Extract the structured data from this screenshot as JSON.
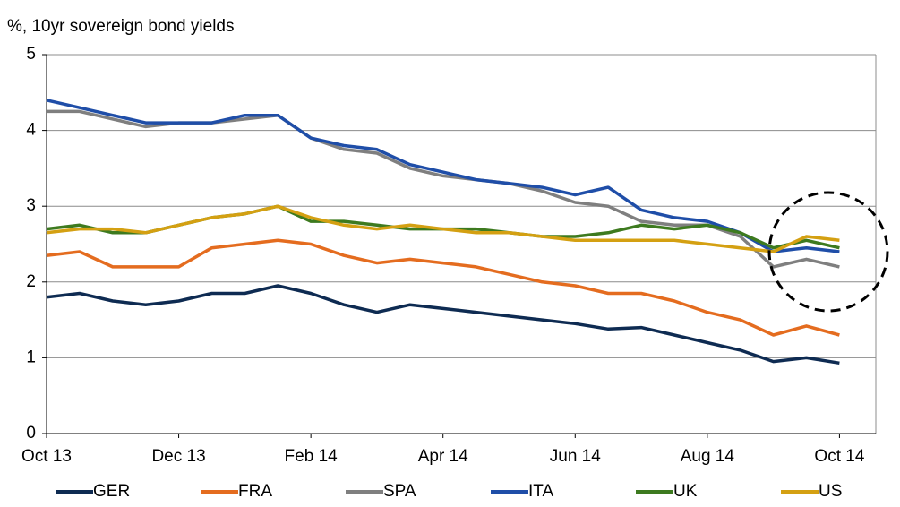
{
  "chart_data": {
    "type": "line",
    "subtitle": "%, 10yr sovereign bond yields",
    "x": [
      0,
      0.5,
      1,
      1.5,
      2,
      2.5,
      3,
      3.5,
      4,
      4.5,
      5,
      5.5,
      6,
      6.5,
      7,
      7.5,
      8,
      8.5,
      9,
      9.5,
      10,
      10.5,
      11,
      11.5,
      12
    ],
    "xlim": [
      0,
      12.55
    ],
    "xticks": [
      {
        "value": 0,
        "label": "Oct 13"
      },
      {
        "value": 2,
        "label": "Dec 13"
      },
      {
        "value": 4,
        "label": "Feb 14"
      },
      {
        "value": 6,
        "label": "Apr 14"
      },
      {
        "value": 8,
        "label": "Jun 14"
      },
      {
        "value": 10,
        "label": "Aug 14"
      },
      {
        "value": 12,
        "label": "Oct 14"
      }
    ],
    "ylim": [
      0,
      5
    ],
    "yticks": [
      0,
      1,
      2,
      3,
      4,
      5
    ],
    "grid": true,
    "legend": "bottom",
    "series": [
      {
        "name": "GER",
        "color": "#0e2b52",
        "values": [
          1.8,
          1.85,
          1.75,
          1.7,
          1.75,
          1.85,
          1.85,
          1.95,
          1.85,
          1.7,
          1.6,
          1.7,
          1.65,
          1.6,
          1.55,
          1.5,
          1.45,
          1.38,
          1.4,
          1.3,
          1.2,
          1.1,
          0.95,
          1.0,
          0.93
        ]
      },
      {
        "name": "FRA",
        "color": "#e46c1f",
        "values": [
          2.35,
          2.4,
          2.2,
          2.2,
          2.2,
          2.45,
          2.5,
          2.55,
          2.5,
          2.35,
          2.25,
          2.3,
          2.25,
          2.2,
          2.1,
          2.0,
          1.95,
          1.85,
          1.85,
          1.75,
          1.6,
          1.5,
          1.3,
          1.42,
          1.3
        ]
      },
      {
        "name": "SPA",
        "color": "#7f7f7f",
        "values": [
          4.25,
          4.25,
          4.15,
          4.05,
          4.1,
          4.1,
          4.15,
          4.2,
          3.9,
          3.75,
          3.7,
          3.5,
          3.4,
          3.35,
          3.3,
          3.2,
          3.05,
          3.0,
          2.8,
          2.75,
          2.75,
          2.6,
          2.2,
          2.3,
          2.2
        ]
      },
      {
        "name": "ITA",
        "color": "#1f4ea8",
        "values": [
          4.4,
          4.3,
          4.2,
          4.1,
          4.1,
          4.1,
          4.2,
          4.2,
          3.9,
          3.8,
          3.75,
          3.55,
          3.45,
          3.35,
          3.3,
          3.25,
          3.15,
          3.25,
          2.95,
          2.85,
          2.8,
          2.65,
          2.4,
          2.45,
          2.4
        ]
      },
      {
        "name": "UK",
        "color": "#3d7a1f",
        "values": [
          2.7,
          2.75,
          2.65,
          2.65,
          2.75,
          2.85,
          2.9,
          3.0,
          2.8,
          2.8,
          2.75,
          2.7,
          2.7,
          2.7,
          2.65,
          2.6,
          2.6,
          2.65,
          2.75,
          2.7,
          2.75,
          2.65,
          2.45,
          2.55,
          2.45
        ]
      },
      {
        "name": "US",
        "color": "#d4a012",
        "values": [
          2.65,
          2.7,
          2.7,
          2.65,
          2.75,
          2.85,
          2.9,
          3.0,
          2.85,
          2.75,
          2.7,
          2.75,
          2.7,
          2.65,
          2.65,
          2.6,
          2.55,
          2.55,
          2.55,
          2.55,
          2.5,
          2.45,
          2.4,
          2.6,
          2.55
        ]
      }
    ]
  }
}
